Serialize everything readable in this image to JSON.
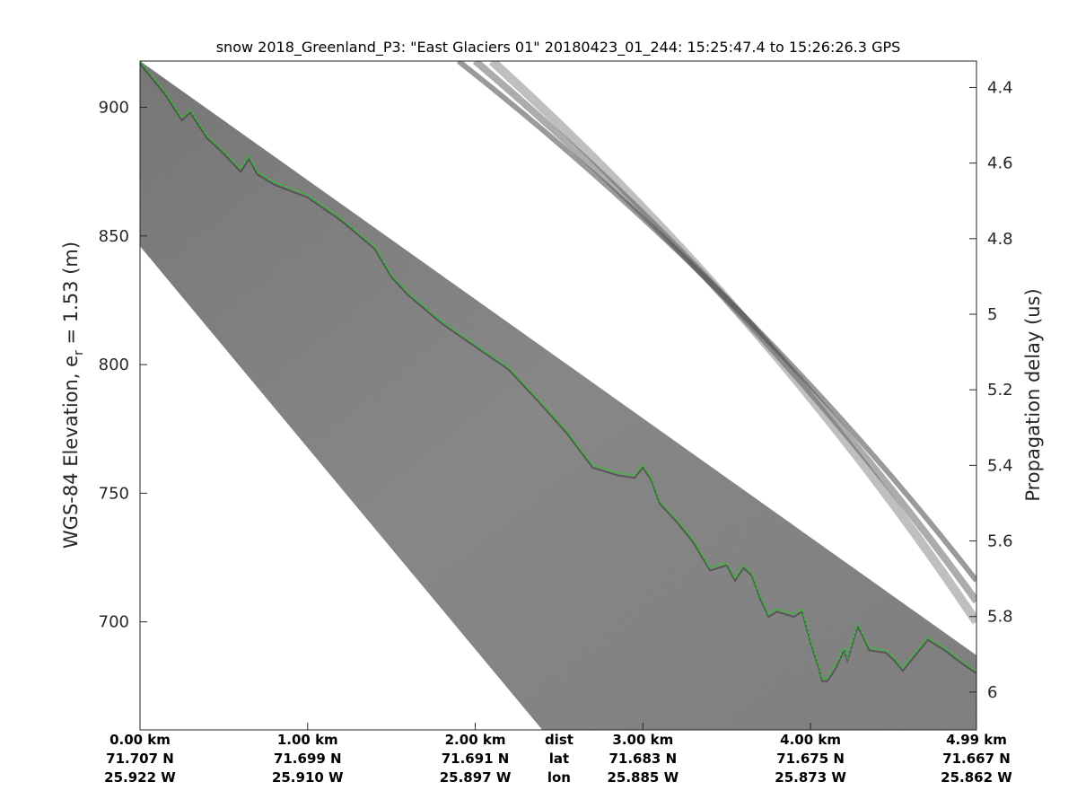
{
  "figure": {
    "title": "snow 2018_Greenland_P3: \"East Glaciers 01\"  20180423_01_244: 15:25:47.4 to 15:26:26.3 GPS"
  },
  "colors": {
    "surface_pick": "#22cc22",
    "echogram_background": "#8f8f8f",
    "echogram_dark": "#474747",
    "axis": "#262626"
  },
  "chart_data": {
    "type": "heatmap",
    "description_type": "radar echogram (grayscale) with dashed surface-pick line",
    "title": "snow 2018_Greenland_P3: \"East Glaciers 01\"  20180423_01_244: 15:25:47.4 to 15:26:26.3 GPS",
    "colormap": "gray",
    "grid": false,
    "ylabel_left": {
      "prefix": "WGS-84 Elevation, e",
      "subscript": "r",
      "suffix": " = 1.53 (m)"
    },
    "ylabel_right": "Propagation delay (us)",
    "xlim_km": [
      0,
      4.99
    ],
    "ylim_m": [
      658,
      918
    ],
    "y_right_lim_us": [
      4.33,
      6.1
    ],
    "yticks_left": [
      700,
      750,
      800,
      850,
      900
    ],
    "yticks_left_labels": [
      "700",
      "750",
      "800",
      "850",
      "900"
    ],
    "yticks_right": [
      4.4,
      4.6,
      4.8,
      5.0,
      5.2,
      5.4,
      5.6,
      5.8,
      6.0
    ],
    "yticks_right_labels": [
      "4.4",
      "4.6",
      "4.8",
      "5",
      "5.2",
      "5.4",
      "5.6",
      "5.8",
      "6"
    ],
    "x_axis_rows": {
      "tick_km": [
        0,
        1,
        2,
        3,
        4,
        4.99
      ],
      "dist": [
        "0.00 km",
        "1.00 km",
        "2.00 km",
        "3.00 km",
        "4.00 km",
        "4.99 km"
      ],
      "lat": [
        "71.707 N",
        "71.699 N",
        "71.691 N",
        "71.683 N",
        "71.675 N",
        "71.667 N"
      ],
      "lon": [
        "25.922 W",
        "25.910 W",
        "25.897 W",
        "25.885 W",
        "25.873 W",
        "25.862 W"
      ],
      "row_labels": [
        "dist",
        "lat",
        "lon"
      ]
    },
    "surface_pick_series": {
      "x_km": [
        0,
        0.15,
        0.25,
        0.3,
        0.35,
        0.4,
        0.5,
        0.6,
        0.65,
        0.7,
        0.8,
        1.0,
        1.2,
        1.4,
        1.5,
        1.6,
        1.8,
        2.0,
        2.2,
        2.4,
        2.55,
        2.7,
        2.85,
        2.95,
        3.0,
        3.05,
        3.1,
        3.2,
        3.3,
        3.4,
        3.5,
        3.55,
        3.6,
        3.65,
        3.7,
        3.75,
        3.8,
        3.9,
        3.95,
        4.0,
        4.05,
        4.07,
        4.1,
        4.15,
        4.2,
        4.22,
        4.28,
        4.3,
        4.35,
        4.45,
        4.5,
        4.55,
        4.6,
        4.65,
        4.7,
        4.8,
        4.9,
        4.99
      ],
      "y_m": [
        918,
        906,
        896,
        899,
        894,
        889,
        883,
        876,
        881,
        875,
        871,
        866,
        857,
        846,
        835,
        828,
        817,
        808,
        799,
        785,
        774,
        761,
        758,
        757,
        761,
        756,
        747,
        740,
        732,
        721,
        723,
        717,
        722,
        719,
        710,
        703,
        705,
        703,
        705,
        693,
        683,
        678,
        678,
        683,
        690,
        686,
        699,
        697,
        690,
        689,
        686,
        682,
        686,
        690,
        694,
        690,
        685,
        681
      ]
    },
    "echogram_band": {
      "top_edge": {
        "x_km": [
          0,
          4.99
        ],
        "y_m": [
          918,
          687
        ]
      },
      "bottom_edge": {
        "x_km": [
          0,
          2.4
        ],
        "y_m": [
          846,
          658
        ]
      },
      "multiple_reflections": [
        {
          "x_km": [
            1.9,
            4.99
          ],
          "y_m": [
            918,
            716
          ]
        },
        {
          "x_km": [
            2.0,
            4.99
          ],
          "y_m": [
            918,
            708
          ]
        },
        {
          "x_km": [
            2.1,
            4.99
          ],
          "y_m": [
            918,
            700
          ]
        }
      ]
    }
  }
}
